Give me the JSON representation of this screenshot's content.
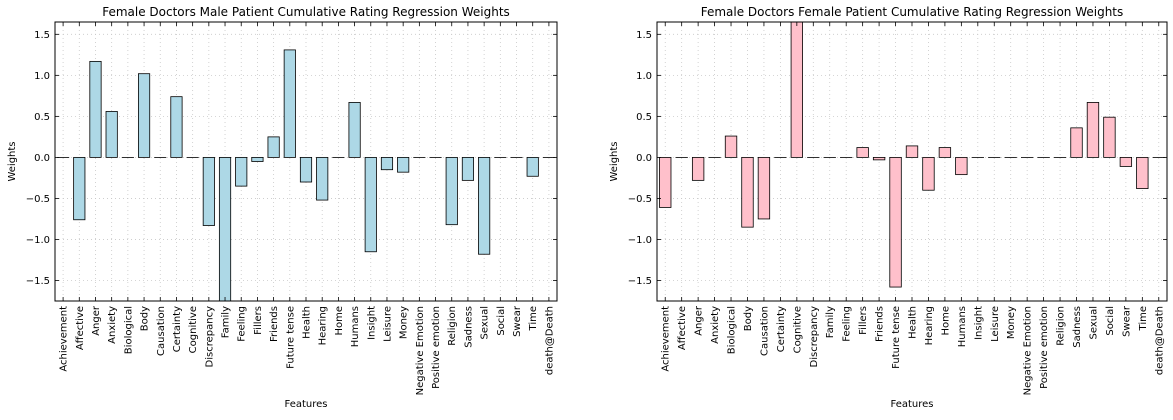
{
  "chart_data": [
    {
      "type": "bar",
      "title": "Female Doctors Male Patient Cumulative Rating Regression Weights",
      "xlabel": "Features",
      "ylabel": "Weights",
      "ylim": [
        -1.75,
        1.65
      ],
      "yticks": [
        "−1.5",
        "−1.0",
        "−0.5",
        "0.0",
        "0.5",
        "1.0",
        "1.5"
      ],
      "ytick_values": [
        -1.5,
        -1.0,
        -0.5,
        0.0,
        0.5,
        1.0,
        1.5
      ],
      "grid": true,
      "bar_color": "#add8e6",
      "categories": [
        "Achievement",
        "Affective",
        "Anger",
        "Anxiety",
        "Biological",
        "Body",
        "Causation",
        "Certainty",
        "Cognitive",
        "Discrepancy",
        "Family",
        "Feeling",
        "Fillers",
        "Friends",
        "Future tense",
        "Health",
        "Hearing",
        "Home",
        "Humans",
        "Insight",
        "Leisure",
        "Money",
        "Negative Emotion",
        "Positive emotion",
        "Religion",
        "Sadness",
        "Sexual",
        "Social",
        "Swear",
        "Time",
        "death@Death"
      ],
      "values": [
        0.0,
        -0.76,
        1.17,
        0.56,
        0.0,
        1.02,
        0.0,
        0.74,
        0.0,
        -0.83,
        -1.75,
        -0.35,
        -0.05,
        0.25,
        1.31,
        -0.3,
        -0.52,
        0.0,
        0.67,
        -1.15,
        -0.15,
        -0.18,
        0.0,
        0.0,
        -0.82,
        -0.28,
        -1.18,
        0.0,
        0.0,
        -0.23,
        0.0
      ]
    },
    {
      "type": "bar",
      "title": "Female Doctors Female Patient Cumulative Rating Regression Weights",
      "xlabel": "Features",
      "ylabel": "Weights",
      "ylim": [
        -1.75,
        1.65
      ],
      "yticks": [
        "−1.5",
        "−1.0",
        "−0.5",
        "0.0",
        "0.5",
        "1.0",
        "1.5"
      ],
      "ytick_values": [
        -1.5,
        -1.0,
        -0.5,
        0.0,
        0.5,
        1.0,
        1.5
      ],
      "grid": true,
      "bar_color": "#ffc0cb",
      "categories": [
        "Achievement",
        "Affective",
        "Anger",
        "Anxiety",
        "Biological",
        "Body",
        "Causation",
        "Certainty",
        "Cognitive",
        "Discrepancy",
        "Family",
        "Feeling",
        "Fillers",
        "Friends",
        "Future tense",
        "Health",
        "Hearing",
        "Home",
        "Humans",
        "Insight",
        "Leisure",
        "Money",
        "Negative Emotion",
        "Positive emotion",
        "Religion",
        "Sadness",
        "Sexual",
        "Social",
        "Swear",
        "Time",
        "death@Death"
      ],
      "values": [
        -0.61,
        0.0,
        -0.28,
        0.0,
        0.26,
        -0.85,
        -0.75,
        0.0,
        1.65,
        0.0,
        0.0,
        0.0,
        0.12,
        -0.03,
        -1.58,
        0.14,
        -0.4,
        0.12,
        -0.21,
        0.0,
        0.0,
        0.0,
        0.0,
        0.0,
        0.0,
        0.36,
        0.67,
        0.49,
        -0.11,
        -0.38,
        0.0
      ]
    }
  ]
}
